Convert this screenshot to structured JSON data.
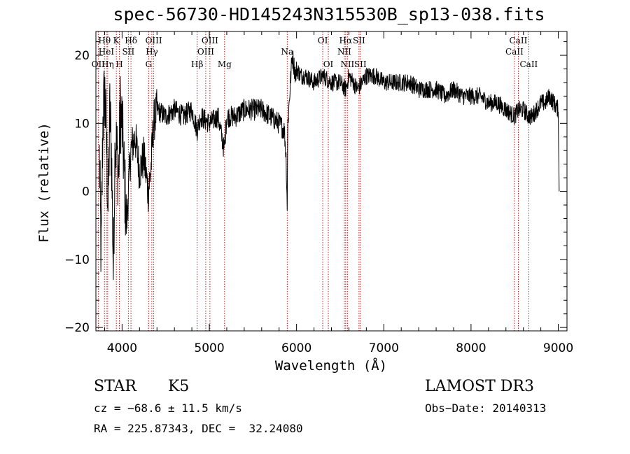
{
  "chart_data": {
    "type": "line",
    "title": "spec-56730-HD145243N315530B_sp13-038.fits",
    "xlabel": "Wavelength (Å)",
    "ylabel": "Flux (relative)",
    "xlim": [
      3700,
      9100
    ],
    "ylim": [
      -20.5,
      23.5
    ],
    "x_ticks": [
      4000,
      5000,
      6000,
      7000,
      8000,
      9000
    ],
    "x_tick_labels": [
      "4000",
      "5000",
      "6000",
      "7000",
      "8000",
      "9000"
    ],
    "y_ticks": [
      -20,
      -10,
      0,
      10,
      20
    ],
    "y_tick_labels": [
      "−20",
      "−10",
      "0",
      "10",
      "20"
    ],
    "series": [
      {
        "name": "flux",
        "x": [
          3740,
          3760,
          3780,
          3800,
          3820,
          3840,
          3860,
          3880,
          3900,
          3920,
          3940,
          3960,
          3980,
          4000,
          4050,
          4100,
          4150,
          4200,
          4250,
          4300,
          4330,
          4360,
          4400,
          4500,
          4600,
          4700,
          4800,
          4860,
          4900,
          5000,
          5100,
          5170,
          5200,
          5300,
          5400,
          5500,
          5600,
          5700,
          5800,
          5860,
          5880,
          5893,
          5900,
          5920,
          5950,
          5990,
          6000,
          6050,
          6100,
          6200,
          6300,
          6400,
          6500,
          6563,
          6600,
          6700,
          6800,
          6900,
          7000,
          7100,
          7200,
          7300,
          7400,
          7500,
          7600,
          7700,
          7800,
          7900,
          8000,
          8100,
          8200,
          8300,
          8400,
          8498,
          8542,
          8600,
          8662,
          8700,
          8750,
          8800,
          8850,
          8900,
          8950,
          9000,
          9010
        ],
        "y": [
          5,
          -10,
          10,
          15,
          8,
          -3,
          12,
          5,
          -12,
          8,
          6,
          2,
          12,
          10,
          -5,
          6,
          8,
          3,
          5,
          0,
          3,
          10,
          12,
          11,
          12,
          11,
          12,
          9,
          11,
          10,
          11,
          6,
          11,
          11,
          12,
          12,
          12,
          11,
          10,
          9,
          5,
          -2,
          10,
          14,
          20,
          17,
          18,
          17,
          17,
          16,
          17,
          16,
          16,
          15,
          17,
          15,
          17,
          17,
          16,
          16,
          16,
          16,
          15,
          15,
          15,
          14,
          15,
          14,
          14,
          14,
          13,
          13,
          12,
          11,
          12,
          12,
          11,
          11,
          12,
          13,
          13,
          14,
          13,
          12,
          0
        ]
      }
    ],
    "line_color": "#000000",
    "marker_color": "#cc0000",
    "line_markers": [
      {
        "label": "Hθ",
        "x": 3798,
        "row": 1
      },
      {
        "label": "OII",
        "x": 3727,
        "row": 3
      },
      {
        "label": "HeI",
        "x": 3820,
        "row": 2
      },
      {
        "label": "Hη",
        "x": 3835,
        "row": 3
      },
      {
        "label": "K",
        "x": 3934,
        "row": 1
      },
      {
        "label": "H",
        "x": 3969,
        "row": 3
      },
      {
        "label": "SII",
        "x": 4072,
        "row": 2
      },
      {
        "label": "Hδ",
        "x": 4102,
        "row": 1
      },
      {
        "label": "OIII",
        "x": 4363,
        "row": 1
      },
      {
        "label": "Hγ",
        "x": 4341,
        "row": 2
      },
      {
        "label": "G",
        "x": 4305,
        "row": 3
      },
      {
        "label": "Hβ",
        "x": 4861,
        "row": 3
      },
      {
        "label": "OIII",
        "x": 5007,
        "row": 1
      },
      {
        "label": "OIII",
        "x": 4959,
        "row": 2
      },
      {
        "label": "Mg",
        "x": 5175,
        "row": 3
      },
      {
        "label": "Na",
        "x": 5893,
        "row": 2
      },
      {
        "label": "OI",
        "x": 6300,
        "row": 1
      },
      {
        "label": "OI",
        "x": 6364,
        "row": 3
      },
      {
        "label": "Hα",
        "x": 6563,
        "row": 1
      },
      {
        "label": "NII",
        "x": 6548,
        "row": 2
      },
      {
        "label": "NII",
        "x": 6583,
        "row": 3
      },
      {
        "label": "SII",
        "x": 6716,
        "row": 1
      },
      {
        "label": "SII",
        "x": 6731,
        "row": 3
      },
      {
        "label": "CaII",
        "x": 8542,
        "row": 1
      },
      {
        "label": "CaII",
        "x": 8498,
        "row": 2
      },
      {
        "label": "CaII",
        "x": 8662,
        "row": 3
      }
    ]
  },
  "info": {
    "object_class": "STAR",
    "subclass": "K5",
    "survey": "LAMOST DR3",
    "cz": "cz = −68.6 ± 11.5 km/s",
    "obs_date": "Obs−Date: 20140313",
    "coords": "RA = 225.87343, DEC =  32.24080"
  }
}
